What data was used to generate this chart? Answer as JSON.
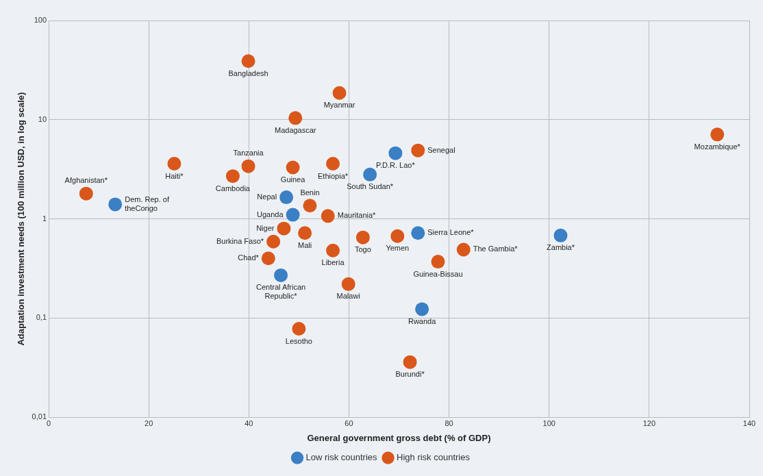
{
  "chart_data": {
    "type": "scatter",
    "xlabel": "General government gross debt (% of GDP)",
    "ylabel": "Adaptation investment needs (100 million USD, in log scale)",
    "log": "y",
    "grid": true,
    "legend": "bottom",
    "marker": "circle",
    "xlim": [
      0,
      140
    ],
    "xticks": [
      0,
      20,
      40,
      60,
      80,
      100,
      120,
      140
    ],
    "ylim": [
      0.01,
      100
    ],
    "yticks": [
      {
        "value": 0.01,
        "label": "0,01"
      },
      {
        "value": 0.1,
        "label": "0,1"
      },
      1,
      10,
      100
    ],
    "series": [
      {
        "name": "Low risk countries",
        "color": "#3b7fc4",
        "x": [
          13.3,
          64.2,
          69.3,
          47.5,
          48.8,
          46.4,
          73.8,
          102.3,
          74.6
        ],
        "values": [
          1.4,
          2.8,
          4.6,
          1.65,
          1.1,
          0.27,
          0.72,
          0.68,
          0.123
        ]
      },
      {
        "name": "High risk countries",
        "color": "#d9571b",
        "x": [
          39.9,
          58.1,
          49.3,
          39.9,
          36.8,
          25.1,
          7.5,
          48.8,
          56.8,
          73.8,
          133.6,
          52.2,
          55.8,
          47,
          51.2,
          44.9,
          43.9,
          56.8,
          62.8,
          69.7,
          82.9,
          77.8,
          59.9,
          50,
          72.2
        ],
        "values": [
          39,
          18.6,
          10.4,
          3.4,
          2.7,
          3.6,
          1.8,
          3.3,
          3.6,
          4.9,
          7.1,
          1.36,
          1.07,
          0.8,
          0.72,
          0.59,
          0.4,
          0.48,
          0.65,
          0.67,
          0.49,
          0.37,
          0.22,
          0.078,
          0.036
        ]
      }
    ],
    "annotations": [
      {
        "text": "Bangladesh",
        "x": 39.9,
        "y": 39
      },
      {
        "text": "Myanmar",
        "x": 58.1,
        "y": 18.6
      },
      {
        "text": "Madagascar",
        "x": 49.3,
        "y": 10.4
      },
      {
        "text": "Tanzania",
        "x": 39.9,
        "y": 3.4
      },
      {
        "text": "Cambodia",
        "x": 36.8,
        "y": 2.7
      },
      {
        "text": "Haiti*",
        "x": 25.1,
        "y": 3.6
      },
      {
        "text": "Afghanistan*",
        "x": 7.5,
        "y": 1.8
      },
      {
        "text": "Dem. Rep. of theCongo",
        "x": 13.3,
        "y": 1.4
      },
      {
        "text": "Guinea",
        "x": 48.8,
        "y": 3.3
      },
      {
        "text": "Ethiopia*",
        "x": 56.8,
        "y": 3.6
      },
      {
        "text": "South Sudan*",
        "x": 64.2,
        "y": 2.8
      },
      {
        "text": "P.D.R. Lao*",
        "x": 69.3,
        "y": 4.6
      },
      {
        "text": "Senegal",
        "x": 73.8,
        "y": 4.9
      },
      {
        "text": "Mozambique*",
        "x": 133.6,
        "y": 7.1
      },
      {
        "text": "Nepal",
        "x": 47.5,
        "y": 1.65
      },
      {
        "text": "Uganda",
        "x": 48.8,
        "y": 1.1
      },
      {
        "text": "Benin",
        "x": 52.2,
        "y": 1.36
      },
      {
        "text": "Mauritania*",
        "x": 55.8,
        "y": 1.07
      },
      {
        "text": "Niger",
        "x": 47,
        "y": 0.8
      },
      {
        "text": "Mali",
        "x": 51.2,
        "y": 0.72
      },
      {
        "text": "Burkina Faso*",
        "x": 44.9,
        "y": 0.59
      },
      {
        "text": "Chad*",
        "x": 43.9,
        "y": 0.4
      },
      {
        "text": "Central African Republic*",
        "x": 46.4,
        "y": 0.27
      },
      {
        "text": "Liberia",
        "x": 56.8,
        "y": 0.48
      },
      {
        "text": "Togo",
        "x": 62.8,
        "y": 0.65
      },
      {
        "text": "Yemen",
        "x": 69.7,
        "y": 0.67
      },
      {
        "text": "Sierra Leone*",
        "x": 73.8,
        "y": 0.72
      },
      {
        "text": "The Gambia*",
        "x": 82.9,
        "y": 0.49
      },
      {
        "text": "Guinea-Bissau",
        "x": 77.8,
        "y": 0.37
      },
      {
        "text": "Zambia*",
        "x": 102.3,
        "y": 0.68
      },
      {
        "text": "Malawi",
        "x": 59.9,
        "y": 0.22
      },
      {
        "text": "Rwanda",
        "x": 74.6,
        "y": 0.123
      },
      {
        "text": "Lesotho",
        "x": 50,
        "y": 0.078
      },
      {
        "text": "Burundi*",
        "x": 72.2,
        "y": 0.036
      }
    ]
  }
}
